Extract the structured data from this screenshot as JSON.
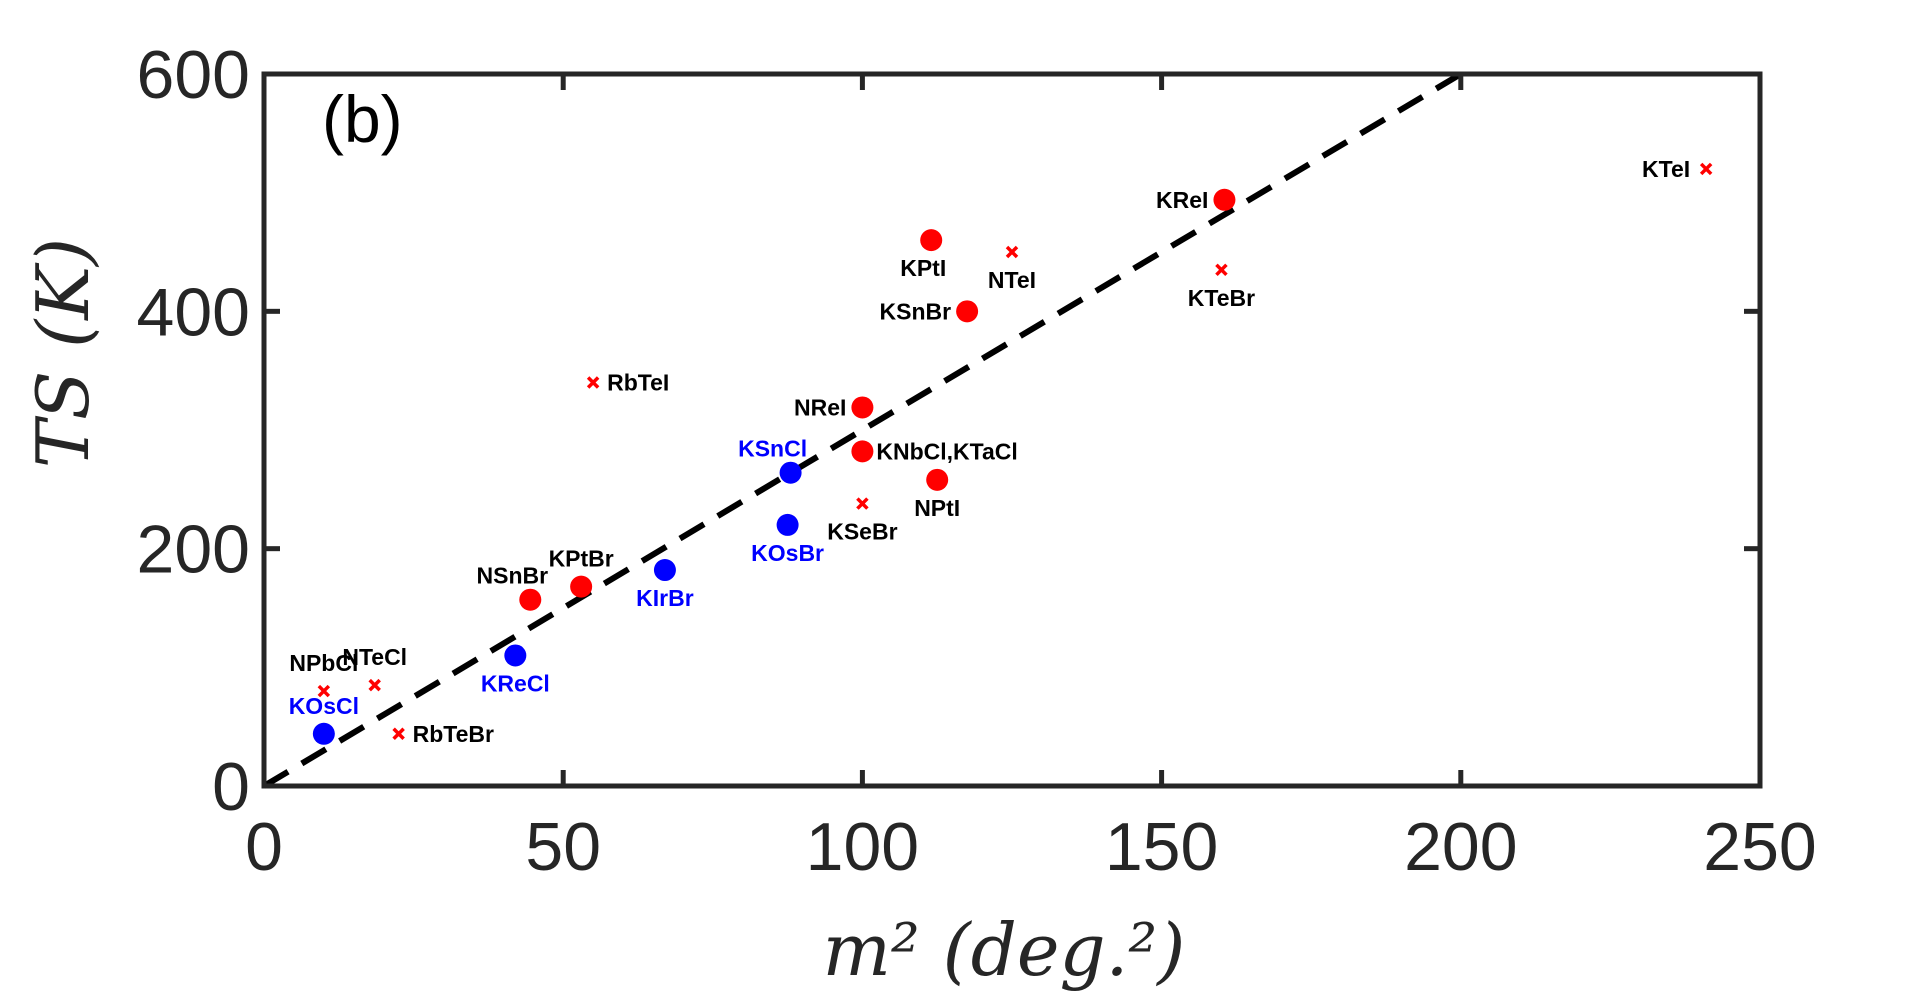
{
  "chart_data": {
    "type": "scatter",
    "panel_label": "(b)",
    "xlabel": "m² (deg.²)",
    "ylabel": "TS (K)",
    "xlim": [
      0,
      250
    ],
    "ylim": [
      0,
      600
    ],
    "xticks": [
      "0",
      "50",
      "100",
      "150",
      "200",
      "250"
    ],
    "yticks": [
      "0",
      "200",
      "400",
      "600"
    ],
    "colors": {
      "red": "#ff0000",
      "blue": "#0000ff",
      "text": "#000000",
      "axis": "#262626"
    },
    "fit_line": {
      "style": "dashed",
      "from": [
        0,
        0
      ],
      "to": [
        200,
        600
      ]
    },
    "points": [
      {
        "label": "KTeI",
        "x": 241,
        "y": 520,
        "marker": "x",
        "color": "red",
        "anchor": "left"
      },
      {
        "label": "KReI",
        "x": 160.5,
        "y": 494,
        "marker": "circle",
        "color": "red",
        "anchor": "left"
      },
      {
        "label": "KTeBr",
        "x": 160,
        "y": 435,
        "marker": "x",
        "color": "red",
        "anchor": "below"
      },
      {
        "label": "KPtI",
        "x": 111.5,
        "y": 460,
        "marker": "circle",
        "color": "red",
        "anchor": "below-left"
      },
      {
        "label": "NTeI",
        "x": 125,
        "y": 450,
        "marker": "x",
        "color": "red",
        "anchor": "below"
      },
      {
        "label": "KSnBr",
        "x": 117.5,
        "y": 400,
        "marker": "circle",
        "color": "red",
        "anchor": "left"
      },
      {
        "label": "RbTeI",
        "x": 55,
        "y": 340,
        "marker": "x",
        "color": "red",
        "anchor": "right"
      },
      {
        "label": "NReI",
        "x": 100,
        "y": 319,
        "marker": "circle",
        "color": "red",
        "anchor": "left"
      },
      {
        "label": "KNbCl,KTaCl",
        "x": 100,
        "y": 282,
        "marker": "circle",
        "color": "red",
        "anchor": "right"
      },
      {
        "label": "NPtI",
        "x": 112.5,
        "y": 258,
        "marker": "circle",
        "color": "red",
        "anchor": "below"
      },
      {
        "label": "KSnCl",
        "x": 88,
        "y": 264,
        "marker": "circle",
        "color": "blue",
        "anchor": "above-left"
      },
      {
        "label": "KSeBr",
        "x": 100,
        "y": 238,
        "marker": "x",
        "color": "red",
        "anchor": "below"
      },
      {
        "label": "KOsBr",
        "x": 87.5,
        "y": 220,
        "marker": "circle",
        "color": "blue",
        "anchor": "below"
      },
      {
        "label": "KIrBr",
        "x": 67,
        "y": 182,
        "marker": "circle",
        "color": "blue",
        "anchor": "below"
      },
      {
        "label": "KPtBr",
        "x": 53,
        "y": 168,
        "marker": "circle",
        "color": "red",
        "anchor": "above"
      },
      {
        "label": "NSnBr",
        "x": 44.5,
        "y": 157,
        "marker": "circle",
        "color": "red",
        "anchor": "above-left"
      },
      {
        "label": "KReCl",
        "x": 42,
        "y": 110,
        "marker": "circle",
        "color": "blue",
        "anchor": "below"
      },
      {
        "label": "NTeCl",
        "x": 18.5,
        "y": 85,
        "marker": "x",
        "color": "red",
        "anchor": "above"
      },
      {
        "label": "NPbCl",
        "x": 10,
        "y": 80,
        "marker": "x",
        "color": "red",
        "anchor": "above"
      },
      {
        "label": "KOsCl",
        "x": 10,
        "y": 44,
        "marker": "circle",
        "color": "blue",
        "anchor": "above"
      },
      {
        "label": "RbTeBr",
        "x": 22.5,
        "y": 44,
        "marker": "x",
        "color": "red",
        "anchor": "right"
      }
    ]
  }
}
